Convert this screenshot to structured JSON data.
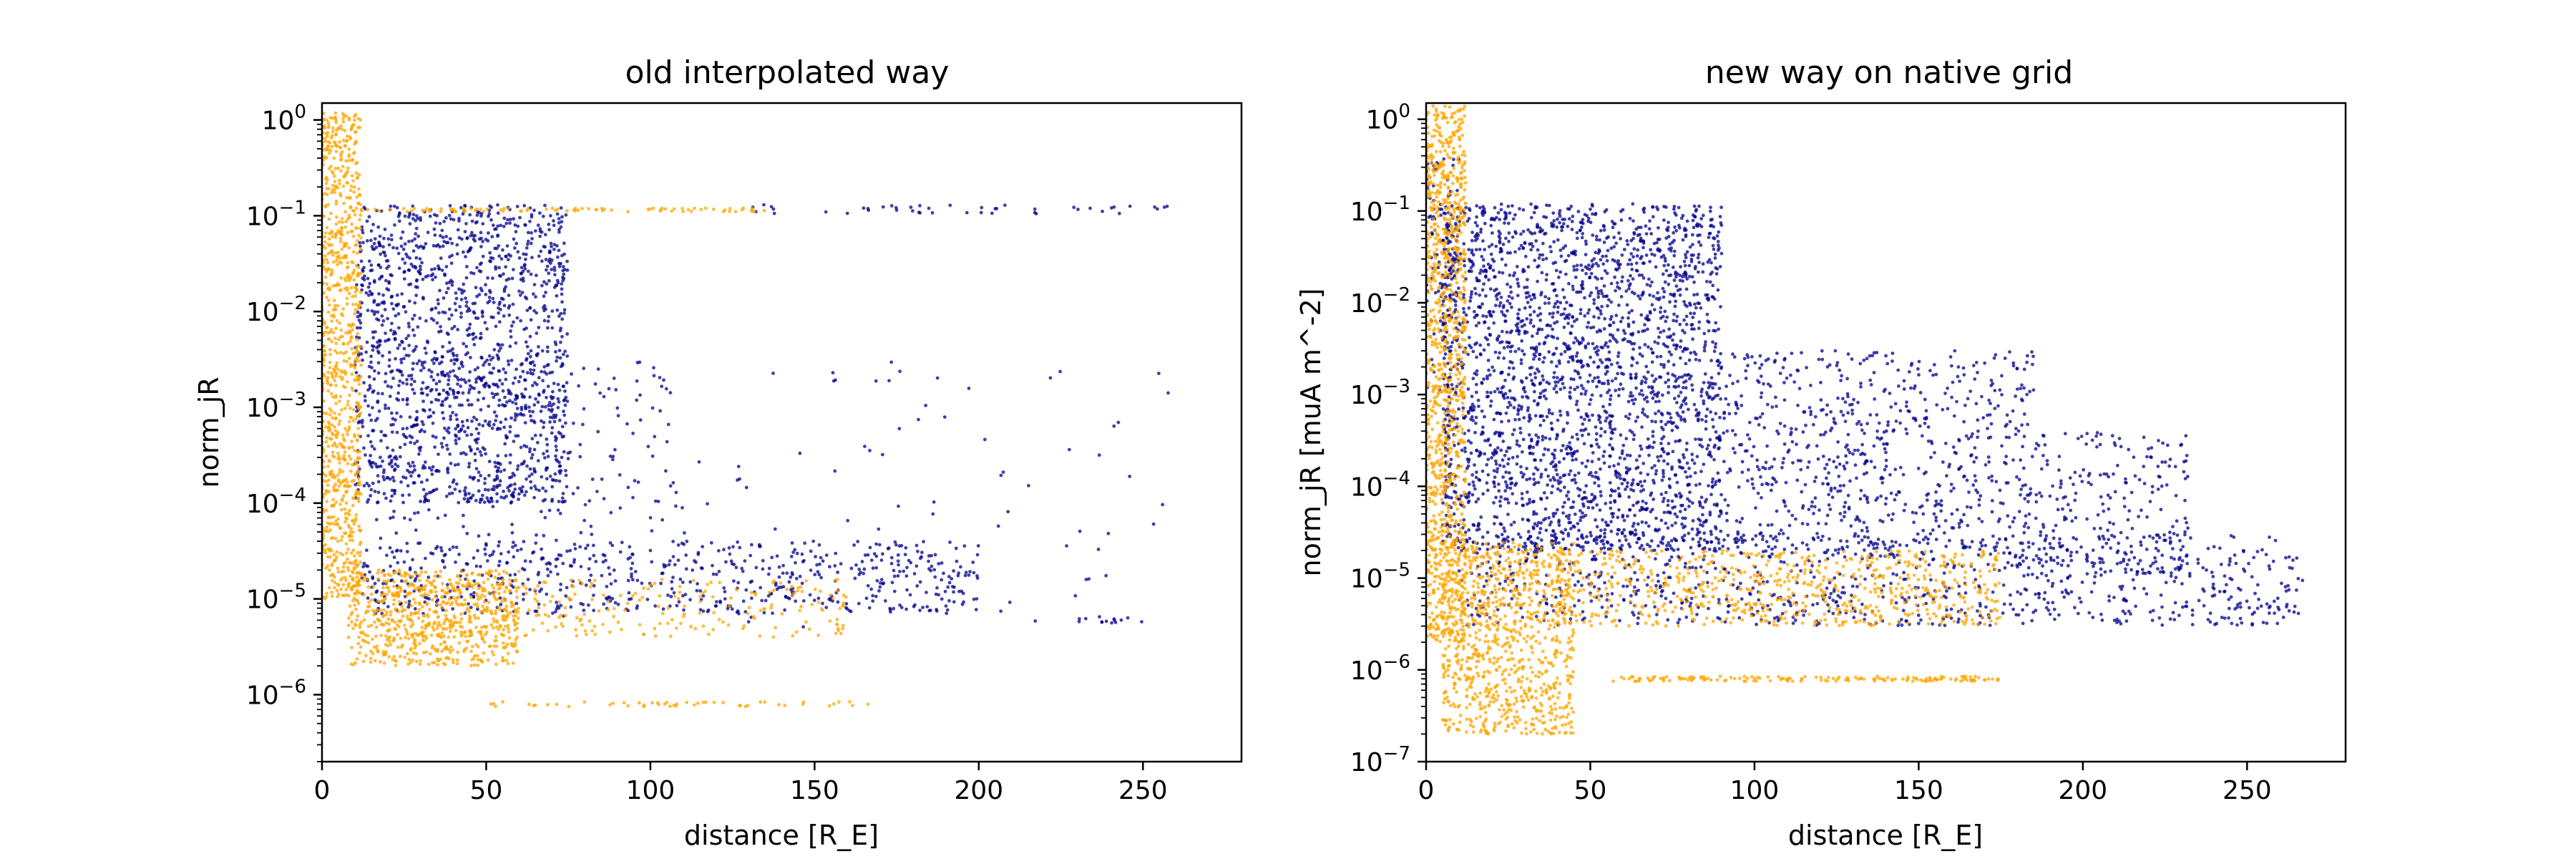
{
  "figure": {
    "background": "#ffffff",
    "series_colors": {
      "dark": "#00008B",
      "light": "#FFA500"
    }
  },
  "chart_data": [
    {
      "type": "scatter",
      "title": "old interpolated way",
      "xlabel": "distance [R_E]",
      "ylabel": "norm_jR",
      "xlim": [
        0,
        280
      ],
      "ylim": [
        2e-07,
        1.5
      ],
      "yscale": "log",
      "xticks": [
        0,
        50,
        100,
        150,
        200,
        250
      ],
      "xtick_labels": [
        "0",
        "50",
        "100",
        "150",
        "200",
        "250"
      ],
      "yticks": [
        1e-06,
        1e-05,
        0.0001,
        0.001,
        0.01,
        0.1,
        1
      ],
      "ytick_labels": [
        {
          "base": "10",
          "exp": "−6"
        },
        {
          "base": "10",
          "exp": "−5"
        },
        {
          "base": "10",
          "exp": "−4"
        },
        {
          "base": "10",
          "exp": "−3"
        },
        {
          "base": "10",
          "exp": "−2"
        },
        {
          "base": "10",
          "exp": "−1"
        },
        {
          "base": "10",
          "exp": "0"
        }
      ],
      "grid": false,
      "legend": "none",
      "series": [
        {
          "color": "#00008B",
          "clusters": [
            {
              "xRange": [
                10,
                75
              ],
              "yRange": [
                0.0001,
                0.13
              ],
              "n": 1500
            },
            {
              "xRange": [
                12,
                110
              ],
              "yRange": [
                4e-05,
                0.003
              ],
              "n": 200
            },
            {
              "xRange": [
                12,
                200
              ],
              "yRange": [
                7e-06,
                4e-05
              ],
              "n": 650
            },
            {
              "xRange": [
                70,
                260
              ],
              "yRange": [
                5e-06,
                0.003
              ],
              "n": 90
            },
            {
              "xRange": [
                130,
                262
              ],
              "yRange": [
                0.105,
                0.13
              ],
              "n": 45
            },
            {
              "xRange": [
                228,
                250
              ],
              "yRange": [
                5.5e-06,
                6.5e-06
              ],
              "n": 14
            }
          ]
        },
        {
          "color": "#FFA500",
          "clusters": [
            {
              "xRange": [
                0,
                12
              ],
              "yRange": [
                1e-05,
                1.2
              ],
              "n": 900
            },
            {
              "xRange": [
                8,
                60
              ],
              "yRange": [
                2e-06,
                2e-05
              ],
              "n": 650
            },
            {
              "xRange": [
                20,
                160
              ],
              "yRange": [
                4e-06,
                1.6e-05
              ],
              "n": 280
            },
            {
              "xRange": [
                50,
                170
              ],
              "yRange": [
                7.5e-07,
                8.5e-07
              ],
              "n": 50
            },
            {
              "xRange": [
                10,
                135
              ],
              "yRange": [
                0.11,
                0.12
              ],
              "n": 90
            }
          ]
        }
      ]
    },
    {
      "type": "scatter",
      "title": "new way on native grid",
      "xlabel": "distance [R_E]",
      "ylabel": "norm_jR [muA m^-2]",
      "xlim": [
        0,
        280
      ],
      "ylim": [
        1e-07,
        1.5
      ],
      "yscale": "log",
      "xticks": [
        0,
        50,
        100,
        150,
        200,
        250
      ],
      "xtick_labels": [
        "0",
        "50",
        "100",
        "150",
        "200",
        "250"
      ],
      "yticks": [
        1e-07,
        1e-06,
        1e-05,
        0.0001,
        0.001,
        0.01,
        0.1,
        1
      ],
      "ytick_labels": [
        {
          "base": "10",
          "exp": "−7"
        },
        {
          "base": "10",
          "exp": "−6"
        },
        {
          "base": "10",
          "exp": "−5"
        },
        {
          "base": "10",
          "exp": "−4"
        },
        {
          "base": "10",
          "exp": "−3"
        },
        {
          "base": "10",
          "exp": "−2"
        },
        {
          "base": "10",
          "exp": "−1"
        },
        {
          "base": "10",
          "exp": "0"
        }
      ],
      "grid": false,
      "legend": "none",
      "series": [
        {
          "color": "#00008B",
          "clusters": [
            {
              "xRange": [
                5,
                90
              ],
              "yRange": [
                2e-05,
                0.12
              ],
              "n": 2600
            },
            {
              "xRange": [
                90,
                185
              ],
              "yRange": [
                2e-05,
                0.003
              ],
              "n": 700
            },
            {
              "xRange": [
                180,
                232
              ],
              "yRange": [
                1e-05,
                0.0004
              ],
              "n": 250
            },
            {
              "xRange": [
                10,
                268
              ],
              "yRange": [
                3e-06,
                3e-05
              ],
              "n": 900
            },
            {
              "xRange": [
                0,
                10
              ],
              "yRange": [
                0.001,
                0.4
              ],
              "n": 120
            }
          ]
        },
        {
          "color": "#FFA500",
          "clusters": [
            {
              "xRange": [
                0,
                12
              ],
              "yRange": [
                2e-06,
                1.4
              ],
              "n": 1100
            },
            {
              "xRange": [
                5,
                45
              ],
              "yRange": [
                2e-07,
                2.5e-05
              ],
              "n": 900
            },
            {
              "xRange": [
                40,
                175
              ],
              "yRange": [
                3e-06,
                2e-05
              ],
              "n": 700
            },
            {
              "xRange": [
                57,
                175
              ],
              "yRange": [
                7.5e-07,
                8.5e-07
              ],
              "n": 160
            }
          ]
        }
      ]
    }
  ]
}
